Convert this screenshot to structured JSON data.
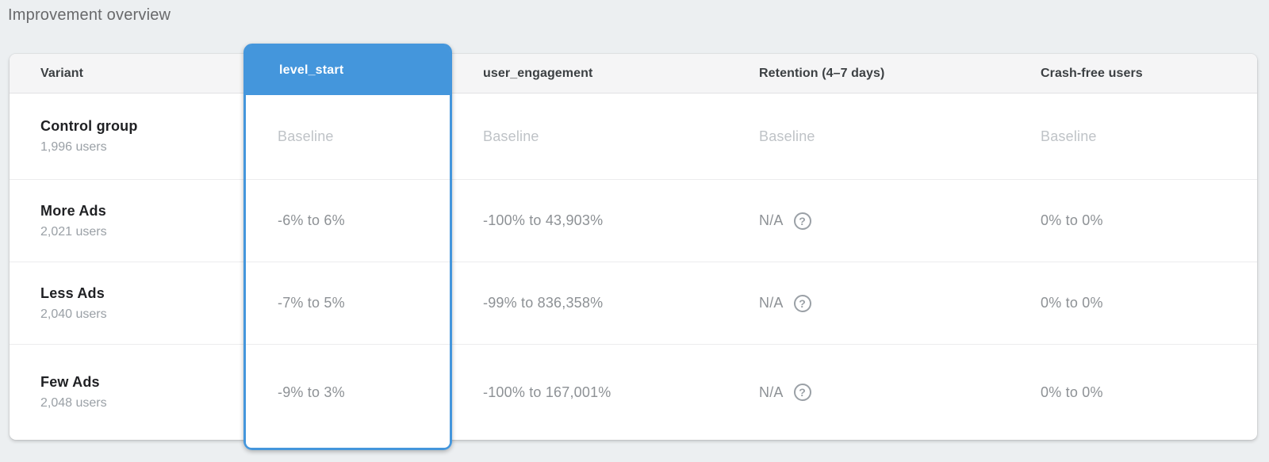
{
  "page": {
    "title": "Improvement overview"
  },
  "colors": {
    "accent_blue": "#4496dc",
    "page_background": "#eceff1",
    "header_background": "#f5f5f6",
    "baseline_text": "#bfc3c7",
    "value_text": "#8d9195"
  },
  "icons": {
    "help_glyph": "?"
  },
  "table": {
    "columns": {
      "variant": {
        "label": "Variant"
      },
      "level_start": {
        "label": "level_start",
        "highlighted": true
      },
      "user_engagement": {
        "label": "user_engagement"
      },
      "retention": {
        "label": "Retention (4–7 days)"
      },
      "crash_free": {
        "label": "Crash-free users"
      }
    },
    "rows": [
      {
        "variant": "Control group",
        "users": "1,996 users",
        "level_start": "Baseline",
        "user_engagement": "Baseline",
        "retention": "Baseline",
        "crash_free": "Baseline",
        "is_baseline": true
      },
      {
        "variant": "More Ads",
        "users": "2,021 users",
        "level_start": "-6% to 6%",
        "user_engagement": "-100% to 43,903%",
        "retention": "N/A",
        "crash_free": "0% to 0%",
        "is_baseline": false
      },
      {
        "variant": "Less Ads",
        "users": "2,040 users",
        "level_start": "-7% to 5%",
        "user_engagement": "-99% to 836,358%",
        "retention": "N/A",
        "crash_free": "0% to 0%",
        "is_baseline": false
      },
      {
        "variant": "Few Ads",
        "users": "2,048 users",
        "level_start": "-9% to 3%",
        "user_engagement": "-100% to 167,001%",
        "retention": "N/A",
        "crash_free": "0% to 0%",
        "is_baseline": false
      }
    ]
  }
}
